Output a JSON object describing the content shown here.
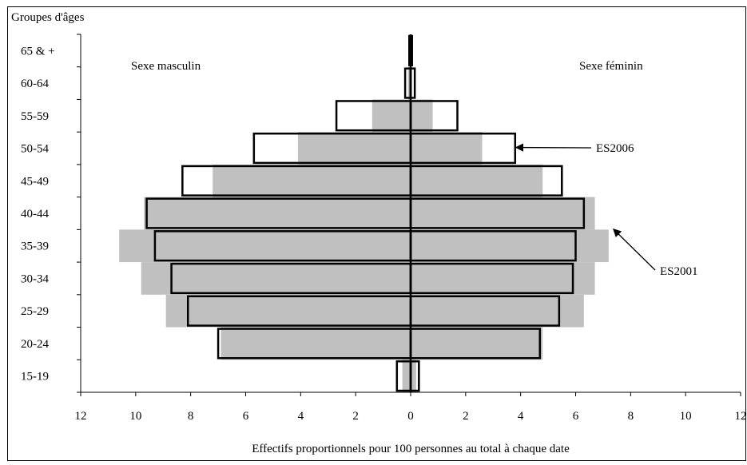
{
  "chart_data": {
    "type": "bar",
    "orientation": "horizontal",
    "layout": "population-pyramid",
    "ylabel": "Groupes d'âges",
    "xlabel": "Effectifs proportionnels pour 100 personnes au total à chaque date",
    "left_label": "Sexe masculin",
    "right_label": "Sexe féminin",
    "categories": [
      "15-19",
      "20-24",
      "25-29",
      "30-34",
      "35-39",
      "40-44",
      "45-49",
      "50-54",
      "55-59",
      "60-64",
      "65 & +"
    ],
    "xlim": [
      -12,
      12
    ],
    "x_ticks": [
      -12,
      -10,
      -8,
      -6,
      -4,
      -2,
      0,
      2,
      4,
      6,
      8,
      10,
      12
    ],
    "x_tick_labels": [
      "12",
      "10",
      "8",
      "6",
      "4",
      "2",
      "0",
      "2",
      "4",
      "6",
      "8",
      "10",
      "12"
    ],
    "grid": false,
    "series": [
      {
        "name": "ES2001",
        "style": "grey-fill",
        "color": "#c0c0c0",
        "male": [
          0.3,
          6.9,
          8.9,
          9.8,
          10.6,
          9.7,
          7.2,
          4.1,
          1.4,
          0.1,
          0.0
        ],
        "female": [
          0.2,
          4.8,
          6.3,
          6.7,
          7.2,
          6.7,
          4.8,
          2.6,
          0.8,
          0.0,
          0.0
        ]
      },
      {
        "name": "ES2006",
        "style": "outline",
        "color": "#000000",
        "male": [
          0.5,
          7.0,
          8.1,
          8.7,
          9.3,
          9.6,
          8.3,
          5.7,
          2.7,
          0.2,
          0.05
        ],
        "female": [
          0.3,
          4.7,
          5.4,
          5.9,
          6.0,
          6.3,
          5.5,
          3.8,
          1.7,
          0.15,
          0.05
        ]
      }
    ],
    "annotations": [
      {
        "text": "ES2006",
        "target_series": "ES2006",
        "target_category": "50-54",
        "side": "female"
      },
      {
        "text": "ES2001",
        "target_series": "ES2001",
        "target_category": "35-39",
        "side": "female"
      }
    ]
  }
}
